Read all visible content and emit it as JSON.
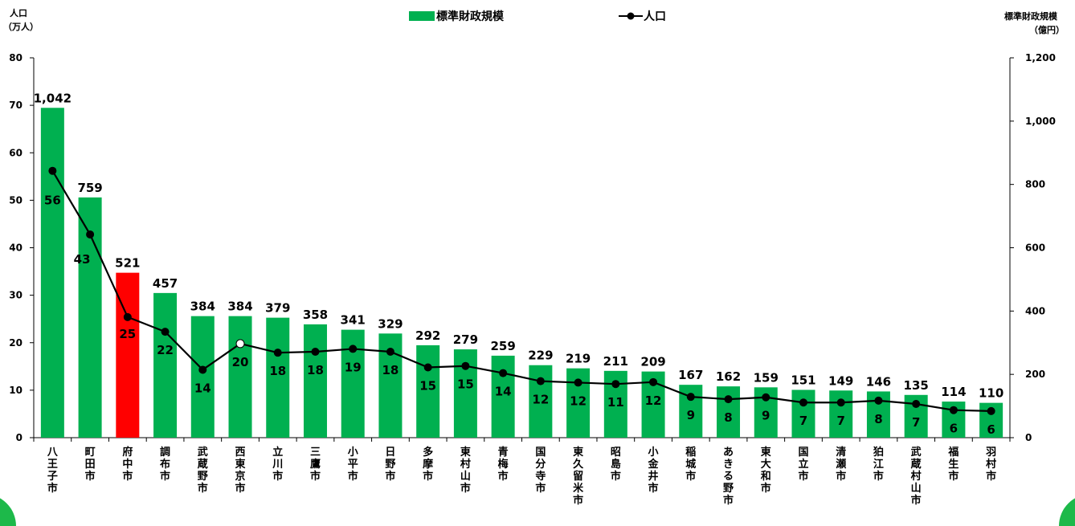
{
  "chart_data": {
    "type": "bar",
    "title": "",
    "legend": [
      "標準財政規模",
      "人口"
    ],
    "legend_placement": "top-center",
    "left_axis": {
      "label_lines": [
        "人口",
        "（万人）"
      ],
      "ylim": [
        0,
        80
      ],
      "ticks": [
        "0",
        "10",
        "20",
        "30",
        "40",
        "50",
        "60",
        "70",
        "80"
      ]
    },
    "right_axis": {
      "label_lines": [
        "標準財政規模",
        "（億円）"
      ],
      "ylim": [
        0,
        1200
      ],
      "ticks": [
        "0",
        "200",
        "400",
        "600",
        "800",
        "1,000",
        "1,200"
      ]
    },
    "categories": [
      "八王子市",
      "町田市",
      "府中市",
      "調布市",
      "武蔵野市",
      "西東京市",
      "立川市",
      "三鷹市",
      "小平市",
      "日野市",
      "多摩市",
      "東村山市",
      "青梅市",
      "国分寺市",
      "東久留米市",
      "昭島市",
      "小金井市",
      "稲城市",
      "あきる野市",
      "東大和市",
      "国立市",
      "清瀬市",
      "狛江市",
      "武蔵村山市",
      "福生市",
      "羽村市"
    ],
    "series": [
      {
        "name": "標準財政規模",
        "axis": "right",
        "kind": "bar",
        "values": [
          1042,
          759,
          521,
          457,
          384,
          384,
          379,
          358,
          341,
          329,
          292,
          279,
          259,
          229,
          219,
          211,
          209,
          167,
          162,
          159,
          151,
          149,
          146,
          135,
          114,
          110
        ],
        "labels": [
          "1,042",
          "759",
          "521",
          "457",
          "384",
          "384",
          "379",
          "358",
          "341",
          "329",
          "292",
          "279",
          "259",
          "229",
          "219",
          "211",
          "209",
          "167",
          "162",
          "159",
          "151",
          "149",
          "146",
          "135",
          "114",
          "110"
        ]
      },
      {
        "name": "人口",
        "axis": "left",
        "kind": "line",
        "values": [
          56.2,
          42.8,
          25.4,
          22.3,
          14.3,
          19.8,
          17.9,
          18.1,
          18.7,
          18.1,
          14.8,
          15.1,
          13.6,
          11.9,
          11.6,
          11.3,
          11.7,
          8.6,
          8.1,
          8.5,
          7.4,
          7.4,
          7.8,
          7.1,
          5.8,
          5.6
        ],
        "labels": [
          "56",
          "43",
          "25",
          "22",
          "14",
          "20",
          "18",
          "18",
          "19",
          "18",
          "15",
          "15",
          "14",
          "12",
          "12",
          "11",
          "12",
          "9",
          "8",
          "9",
          "7",
          "7",
          "8",
          "7",
          "6",
          "6"
        ]
      }
    ],
    "highlight_category": "府中市",
    "colors": {
      "bar": "#00b050",
      "bar_highlight": "#ff0000",
      "line": "#000000",
      "marker_special": "#ffffff"
    },
    "special_marker_category": "西東京市",
    "grid": false
  }
}
